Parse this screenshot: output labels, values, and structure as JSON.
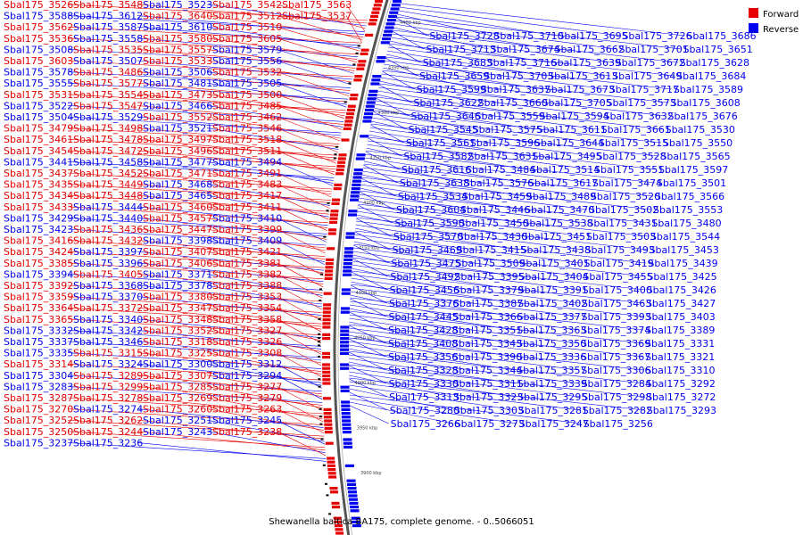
{
  "caption": "Shewanella baltica BA175, complete genome. - 0..5066051",
  "legend": [
    {
      "label": "Forward",
      "color": "#e60000"
    },
    {
      "label": "Reverse",
      "color": "#0000f0"
    }
  ],
  "colors": {
    "forward": "#e60000",
    "reverse": "#0000f0",
    "backbone": "#555555",
    "background": "#ffffff"
  },
  "kbp_marks": [
    "3900 kbp",
    "3950 kbp",
    "4000 kbp",
    "4050 kbp",
    "4100 kbp",
    "4150 kbp",
    "4200 kbp",
    "4250 kbp",
    "4300 kbp",
    "4350 kbp",
    "4400 kbp"
  ],
  "left_labels": [
    {
      "t": "Sbal175_3526",
      "s": "F"
    },
    {
      "t": "Sbal175_3548",
      "s": "F"
    },
    {
      "t": "Sbal175_3523",
      "s": "R"
    },
    {
      "t": "Sbal175_3542",
      "s": "F"
    },
    {
      "t": "Sbal175_3563",
      "s": "F"
    },
    {
      "t": "Sbal175_3588",
      "s": "R"
    },
    {
      "t": "Sbal175_3612",
      "s": "R"
    },
    {
      "t": "Sbal175_3640",
      "s": "F"
    },
    {
      "t": "Sbal175_3512",
      "s": "F"
    },
    {
      "t": "Sbal175_3537",
      "s": "F"
    },
    {
      "t": "Sbal175_3562",
      "s": "F"
    },
    {
      "t": "Sbal175_3587",
      "s": "R"
    },
    {
      "t": "Sbal175_3610",
      "s": "R"
    },
    {
      "t": "Sbal175_3510",
      "s": "F"
    },
    {
      "t": "Sbal175_3536",
      "s": "F"
    },
    {
      "t": "Sbal175_3558",
      "s": "R"
    },
    {
      "t": "Sbal175_3580",
      "s": "F"
    },
    {
      "t": "Sbal175_3605",
      "s": "F"
    },
    {
      "t": "Sbal175_3508",
      "s": "R"
    },
    {
      "t": "Sbal175_3535",
      "s": "F"
    },
    {
      "t": "Sbal175_3557",
      "s": "F"
    },
    {
      "t": "Sbal175_3579",
      "s": "R"
    },
    {
      "t": "Sbal175_3603",
      "s": "F"
    },
    {
      "t": "Sbal175_3507",
      "s": "R"
    },
    {
      "t": "Sbal175_3533",
      "s": "F"
    },
    {
      "t": "Sbal175_3556",
      "s": "R"
    },
    {
      "t": "Sbal175_3578",
      "s": "R"
    },
    {
      "t": "Sbal175_3486",
      "s": "F"
    },
    {
      "t": "Sbal175_3506",
      "s": "R"
    },
    {
      "t": "Sbal175_3532",
      "s": "F"
    },
    {
      "t": "Sbal175_3555",
      "s": "R"
    },
    {
      "t": "Sbal175_3577",
      "s": "F"
    },
    {
      "t": "Sbal175_3481",
      "s": "R"
    },
    {
      "t": "Sbal175_3505",
      "s": "R"
    },
    {
      "t": "Sbal175_3531",
      "s": "F"
    },
    {
      "t": "Sbal175_3554",
      "s": "F"
    },
    {
      "t": "Sbal175_3473",
      "s": "F"
    },
    {
      "t": "Sbal175_3500",
      "s": "F"
    },
    {
      "t": "Sbal175_3522",
      "s": "R"
    },
    {
      "t": "Sbal175_3547",
      "s": "F"
    },
    {
      "t": "Sbal175_3466",
      "s": "R"
    },
    {
      "t": "Sbal175_3485",
      "s": "F"
    },
    {
      "t": "Sbal175_3504",
      "s": "R"
    },
    {
      "t": "Sbal175_3529",
      "s": "R"
    },
    {
      "t": "Sbal175_3552",
      "s": "F"
    },
    {
      "t": "Sbal175_3462",
      "s": "F"
    },
    {
      "t": "Sbal175_3479",
      "s": "F"
    },
    {
      "t": "Sbal175_3498",
      "s": "F"
    },
    {
      "t": "Sbal175_3521",
      "s": "R"
    },
    {
      "t": "Sbal175_3546",
      "s": "F"
    },
    {
      "t": "Sbal175_3461",
      "s": "F"
    },
    {
      "t": "Sbal175_3478",
      "s": "F"
    },
    {
      "t": "Sbal175_3497",
      "s": "F"
    },
    {
      "t": "Sbal175_3518",
      "s": "F"
    },
    {
      "t": "Sbal175_3454",
      "s": "F"
    },
    {
      "t": "Sbal175_3472",
      "s": "F"
    },
    {
      "t": "Sbal175_3496",
      "s": "F"
    },
    {
      "t": "Sbal175_3511",
      "s": "F"
    },
    {
      "t": "Sbal175_3441",
      "s": "R"
    },
    {
      "t": "Sbal175_3458",
      "s": "R"
    },
    {
      "t": "Sbal175_3477",
      "s": "R"
    },
    {
      "t": "Sbal175_3494",
      "s": "R"
    },
    {
      "t": "Sbal175_3437",
      "s": "F"
    },
    {
      "t": "Sbal175_3452",
      "s": "F"
    },
    {
      "t": "Sbal175_3471",
      "s": "F"
    },
    {
      "t": "Sbal175_3491",
      "s": "F"
    },
    {
      "t": "Sbal175_3435",
      "s": "F"
    },
    {
      "t": "Sbal175_3449",
      "s": "F"
    },
    {
      "t": "Sbal175_3468",
      "s": "R"
    },
    {
      "t": "Sbal175_3483",
      "s": "F"
    },
    {
      "t": "Sbal175_3434",
      "s": "F"
    },
    {
      "t": "Sbal175_3448",
      "s": "F"
    },
    {
      "t": "Sbal175_3465",
      "s": "R"
    },
    {
      "t": "Sbal175_3417",
      "s": "F"
    },
    {
      "t": "Sbal175_3433",
      "s": "F"
    },
    {
      "t": "Sbal175_3444",
      "s": "R"
    },
    {
      "t": "Sbal175_3460",
      "s": "F"
    },
    {
      "t": "Sbal175_3411",
      "s": "F"
    },
    {
      "t": "Sbal175_3429",
      "s": "R"
    },
    {
      "t": "Sbal175_3440",
      "s": "R"
    },
    {
      "t": "Sbal175_3457",
      "s": "F"
    },
    {
      "t": "Sbal175_3410",
      "s": "R"
    },
    {
      "t": "Sbal175_3423",
      "s": "R"
    },
    {
      "t": "Sbal175_3436",
      "s": "F"
    },
    {
      "t": "Sbal175_3447",
      "s": "F"
    },
    {
      "t": "Sbal175_3399",
      "s": "F"
    },
    {
      "t": "Sbal175_3416",
      "s": "F"
    },
    {
      "t": "Sbal175_3432",
      "s": "F"
    },
    {
      "t": "Sbal175_3398",
      "s": "R"
    },
    {
      "t": "Sbal175_3409",
      "s": "R"
    },
    {
      "t": "Sbal175_3424",
      "s": "F"
    },
    {
      "t": "Sbal175_3397",
      "s": "R"
    },
    {
      "t": "Sbal175_3407",
      "s": "F"
    },
    {
      "t": "Sbal175_3421",
      "s": "F"
    },
    {
      "t": "Sbal175_3385",
      "s": "F"
    },
    {
      "t": "Sbal175_3396",
      "s": "R"
    },
    {
      "t": "Sbal175_3406",
      "s": "F"
    },
    {
      "t": "Sbal175_3381",
      "s": "F"
    },
    {
      "t": "Sbal175_3394",
      "s": "R"
    },
    {
      "t": "Sbal175_3405",
      "s": "F"
    },
    {
      "t": "Sbal175_3371",
      "s": "R"
    },
    {
      "t": "Sbal175_3382",
      "s": "F"
    },
    {
      "t": "Sbal175_3392",
      "s": "F"
    },
    {
      "t": "Sbal175_3368",
      "s": "R"
    },
    {
      "t": "Sbal175_3378",
      "s": "R"
    },
    {
      "t": "Sbal175_3388",
      "s": "F"
    },
    {
      "t": "Sbal175_3359",
      "s": "F"
    },
    {
      "t": "Sbal175_3370",
      "s": "R"
    },
    {
      "t": "Sbal175_3380",
      "s": "F"
    },
    {
      "t": "Sbal175_3353",
      "s": "F"
    },
    {
      "t": "Sbal175_3364",
      "s": "F"
    },
    {
      "t": "Sbal175_3372",
      "s": "F"
    },
    {
      "t": "Sbal175_3347",
      "s": "F"
    },
    {
      "t": "Sbal175_3354",
      "s": "F"
    },
    {
      "t": "Sbal175_3365",
      "s": "F"
    },
    {
      "t": "Sbal175_3340",
      "s": "R"
    },
    {
      "t": "Sbal175_3348",
      "s": "F"
    },
    {
      "t": "Sbal175_3358",
      "s": "F"
    },
    {
      "t": "Sbal175_3332",
      "s": "R"
    },
    {
      "t": "Sbal175_3342",
      "s": "R"
    },
    {
      "t": "Sbal175_3352",
      "s": "F"
    },
    {
      "t": "Sbal175_3327",
      "s": "F"
    },
    {
      "t": "Sbal175_3337",
      "s": "R"
    },
    {
      "t": "Sbal175_3346",
      "s": "R"
    },
    {
      "t": "Sbal175_3318",
      "s": "F"
    },
    {
      "t": "Sbal175_3326",
      "s": "F"
    },
    {
      "t": "Sbal175_3335",
      "s": "R"
    },
    {
      "t": "Sbal175_3315",
      "s": "F"
    },
    {
      "t": "Sbal175_3325",
      "s": "F"
    },
    {
      "t": "Sbal175_3308",
      "s": "F"
    },
    {
      "t": "Sbal175_3314",
      "s": "F"
    },
    {
      "t": "Sbal175_3324",
      "s": "R"
    },
    {
      "t": "Sbal175_3300",
      "s": "R"
    },
    {
      "t": "Sbal175_3312",
      "s": "R"
    },
    {
      "t": "Sbal175_3304",
      "s": "R"
    },
    {
      "t": "Sbal175_3289",
      "s": "F"
    },
    {
      "t": "Sbal175_3307",
      "s": "F"
    },
    {
      "t": "Sbal175_3294",
      "s": "R"
    },
    {
      "t": "Sbal175_3283",
      "s": "R"
    },
    {
      "t": "Sbal175_3299",
      "s": "F"
    },
    {
      "t": "Sbal175_3285",
      "s": "F"
    },
    {
      "t": "Sbal175_3277",
      "s": "F"
    },
    {
      "t": "Sbal175_3287",
      "s": "F"
    },
    {
      "t": "Sbal175_3278",
      "s": "F"
    },
    {
      "t": "Sbal175_3269",
      "s": "F"
    },
    {
      "t": "Sbal175_3279",
      "s": "F"
    },
    {
      "t": "Sbal175_3270",
      "s": "F"
    },
    {
      "t": "Sbal175_3274",
      "s": "R"
    },
    {
      "t": "Sbal175_3260",
      "s": "F"
    },
    {
      "t": "Sbal175_3263",
      "s": "F"
    },
    {
      "t": "Sbal175_3252",
      "s": "F"
    },
    {
      "t": "Sbal175_3262",
      "s": "F"
    },
    {
      "t": "Sbal175_3251",
      "s": "R"
    },
    {
      "t": "Sbal175_3245",
      "s": "R"
    },
    {
      "t": "Sbal175_3250",
      "s": "F"
    },
    {
      "t": "Sbal175_3244",
      "s": "F"
    },
    {
      "t": "Sbal175_3243",
      "s": "R"
    },
    {
      "t": "Sbal175_3238",
      "s": "F"
    },
    {
      "t": "Sbal175_3237",
      "s": "R"
    },
    {
      "t": "Sbal175_3236",
      "s": "R"
    }
  ],
  "right_labels": [
    "Sbal175_3728",
    "Sbal175_3710",
    "Sbal175_3695",
    "Sbal175_3726",
    "Sbal175_3686",
    "Sbal175_3713",
    "Sbal175_3674",
    "Sbal175_3662",
    "Sbal175_3701",
    "Sbal175_3651",
    "Sbal175_3683",
    "Sbal175_3716",
    "Sbal175_3639",
    "Sbal175_3672",
    "Sbal175_3628",
    "Sbal175_3659",
    "Sbal175_3703",
    "Sbal175_3613",
    "Sbal175_3649",
    "Sbal175_3684",
    "Sbal175_3599",
    "Sbal175_3637",
    "Sbal175_3673",
    "Sbal175_3717",
    "Sbal175_3589",
    "Sbal175_3622",
    "Sbal175_3660",
    "Sbal175_3705",
    "Sbal175_3573",
    "Sbal175_3608",
    "Sbal175_3646",
    "Sbal175_3559",
    "Sbal175_3594",
    "Sbal175_3632",
    "Sbal175_3676",
    "Sbal175_3545",
    "Sbal175_3575",
    "Sbal175_3611",
    "Sbal175_3661",
    "Sbal175_3530",
    "Sbal175_3561",
    "Sbal175_3596",
    "Sbal175_3644",
    "Sbal175_3515",
    "Sbal175_3550",
    "Sbal175_3582",
    "Sbal175_3631",
    "Sbal175_3495",
    "Sbal175_3528",
    "Sbal175_3565",
    "Sbal175_3616",
    "Sbal175_3484",
    "Sbal175_3514",
    "Sbal175_3551",
    "Sbal175_3597",
    "Sbal175_3638",
    "Sbal175_3576",
    "Sbal175_3617",
    "Sbal175_3474",
    "Sbal175_3501",
    "Sbal175_3534",
    "Sbal175_3459",
    "Sbal175_3489",
    "Sbal175_3520",
    "Sbal175_3566",
    "Sbal175_3604",
    "Sbal175_3446",
    "Sbal175_3470",
    "Sbal175_3502",
    "Sbal175_3553",
    "Sbal175_3590",
    "Sbal175_3450",
    "Sbal175_3538",
    "Sbal175_3431",
    "Sbal175_3480",
    "Sbal175_3570",
    "Sbal175_3430",
    "Sbal175_3451",
    "Sbal175_3503",
    "Sbal175_3544",
    "Sbal175_3469",
    "Sbal175_3415",
    "Sbal175_3438",
    "Sbal175_3493",
    "Sbal175_3453",
    "Sbal175_3475",
    "Sbal175_3509",
    "Sbal175_3401",
    "Sbal175_3419",
    "Sbal175_3439",
    "Sbal175_3492",
    "Sbal175_3395",
    "Sbal175_3404",
    "Sbal175_3455",
    "Sbal175_3425",
    "Sbal175_3456",
    "Sbal175_3379",
    "Sbal175_3391",
    "Sbal175_3400",
    "Sbal175_3426",
    "Sbal175_3376",
    "Sbal175_3387",
    "Sbal175_3402",
    "Sbal175_3463",
    "Sbal175_3427",
    "Sbal175_3445",
    "Sbal175_3366",
    "Sbal175_3377",
    "Sbal175_3393",
    "Sbal175_3403",
    "Sbal175_3428",
    "Sbal175_3351",
    "Sbal175_3363",
    "Sbal175_3374",
    "Sbal175_3389",
    "Sbal175_3408",
    "Sbal175_3343",
    "Sbal175_3350",
    "Sbal175_3369",
    "Sbal175_3331",
    "Sbal175_3356",
    "Sbal175_3390",
    "Sbal175_3336",
    "Sbal175_3367",
    "Sbal175_3321",
    "Sbal175_3328",
    "Sbal175_3344",
    "Sbal175_3357",
    "Sbal175_3306",
    "Sbal175_3310",
    "Sbal175_3330",
    "Sbal175_3311",
    "Sbal175_3339",
    "Sbal175_3284",
    "Sbal175_3292",
    "Sbal175_3313",
    "Sbal175_3323",
    "Sbal175_3295",
    "Sbal175_3298",
    "Sbal175_3272",
    "Sbal175_3280",
    "Sbal175_3303",
    "Sbal175_3281",
    "Sbal175_3282",
    "Sbal175_3293",
    "Sbal175_3266",
    "Sbal175_3273",
    "Sbal175_3247",
    "Sbal175_3256"
  ]
}
